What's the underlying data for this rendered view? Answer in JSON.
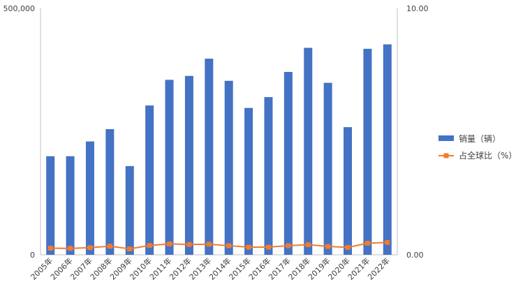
{
  "chart_data": {
    "type": "bar",
    "categories": [
      "2005年",
      "2006年",
      "2007年",
      "2008年",
      "2009年",
      "2010年",
      "2011年",
      "2012年",
      "2013年",
      "2014年",
      "2015年",
      "2016年",
      "2017年",
      "2018年",
      "2019年",
      "2020年",
      "2021年",
      "2022年"
    ],
    "series": [
      {
        "name": "销量（辆）",
        "type": "bar",
        "axis": "left",
        "color": "#4472C4",
        "values": [
          200000,
          200000,
          230000,
          255000,
          180000,
          303000,
          355000,
          363000,
          398000,
          353000,
          298000,
          320000,
          371000,
          420000,
          349000,
          259000,
          418000,
          427000
        ]
      },
      {
        "name": "占全球比（%）",
        "type": "line",
        "axis": "right",
        "color": "#ED7D31",
        "marker": "square",
        "values": [
          0.27,
          0.26,
          0.29,
          0.35,
          0.24,
          0.38,
          0.44,
          0.42,
          0.43,
          0.37,
          0.31,
          0.31,
          0.37,
          0.41,
          0.34,
          0.3,
          0.47,
          0.5
        ]
      }
    ],
    "yaxis_left": {
      "min": 0,
      "max": 500000,
      "tick_labels": [
        "0",
        "500,000"
      ]
    },
    "yaxis_right": {
      "min": 0,
      "max": 10,
      "tick_labels": [
        "0.00",
        "10.00"
      ]
    },
    "grid": false,
    "legend_position": "right"
  }
}
